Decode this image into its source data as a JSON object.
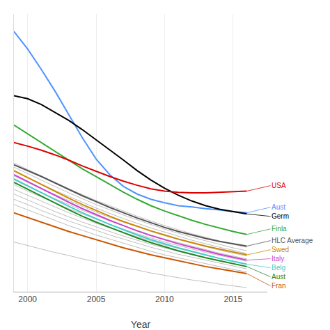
{
  "chart_data": {
    "type": "line",
    "xlabel": "Year",
    "x": [
      1999,
      2000,
      2001,
      2002,
      2003,
      2004,
      2005,
      2006,
      2007,
      2008,
      2009,
      2010,
      2011,
      2012,
      2013,
      2014,
      2015,
      2016
    ],
    "xlim": [
      1999,
      2017.5
    ],
    "xticks": [
      2000,
      2005,
      2010,
      2015
    ],
    "ylim": [
      55,
      530
    ],
    "grid": "x",
    "tick_labels": "x",
    "series": [
      {
        "color": "#aaaaaa",
        "values": [
          275,
          264,
          253,
          242,
          231,
          221,
          211,
          202,
          193,
          184,
          176,
          168,
          161,
          154,
          148,
          142,
          136,
          131
        ]
      },
      {
        "color": "#aaaaaa",
        "values": [
          268,
          257,
          246,
          235,
          224,
          214,
          204,
          195,
          186,
          178,
          170,
          162,
          155,
          148,
          142,
          136,
          130,
          125
        ]
      },
      {
        "color": "#aaaaaa",
        "values": [
          261,
          250,
          239,
          228,
          218,
          208,
          198,
          189,
          180,
          172,
          164,
          157,
          150,
          143,
          137,
          131,
          126,
          120
        ]
      },
      {
        "color": "#aaaaaa",
        "values": [
          253,
          242,
          231,
          221,
          211,
          201,
          191,
          182,
          174,
          166,
          158,
          151,
          144,
          138,
          132,
          126,
          121,
          116
        ]
      },
      {
        "color": "#aaaaaa",
        "values": [
          246,
          235,
          224,
          214,
          204,
          194,
          185,
          176,
          168,
          160,
          152,
          145,
          139,
          133,
          127,
          121,
          116,
          111
        ]
      },
      {
        "color": "#aaaaaa",
        "values": [
          238,
          227,
          217,
          207,
          197,
          188,
          179,
          170,
          162,
          154,
          147,
          140,
          134,
          128,
          122,
          117,
          112,
          107
        ]
      },
      {
        "color": "#aaaaaa",
        "values": [
          230,
          220,
          210,
          200,
          190,
          181,
          172,
          164,
          156,
          149,
          142,
          135,
          129,
          123,
          117,
          112,
          107,
          102
        ]
      },
      {
        "color": "#aaaaaa",
        "values": [
          222,
          212,
          202,
          192,
          183,
          174,
          166,
          158,
          150,
          143,
          136,
          130,
          124,
          118,
          113,
          108,
          103,
          98
        ]
      },
      {
        "color": "#aaaaaa",
        "values": [
          213,
          204,
          194,
          185,
          176,
          168,
          160,
          152,
          145,
          138,
          131,
          125,
          119,
          114,
          109,
          104,
          99,
          94
        ]
      },
      {
        "color": "#aaaaaa",
        "values": [
          204,
          195,
          186,
          177,
          168,
          160,
          152,
          145,
          138,
          131,
          124,
          118,
          113,
          108,
          103,
          98,
          93,
          89
        ]
      },
      {
        "color": "#aaaaaa",
        "values": [
          140,
          134,
          128,
          122,
          117,
          111,
          106,
          101,
          96,
          92,
          87,
          83,
          79,
          75,
          72,
          68,
          65,
          62
        ]
      },
      {
        "name": "Aust",
        "color": "#4d94ff",
        "values": [
          500,
          470,
          435,
          398,
          358,
          318,
          282,
          255,
          235,
          222,
          213,
          207,
          202,
          200,
          197,
          195,
          192,
          190
        ]
      },
      {
        "name": "Germ",
        "color": "#000000",
        "values": [
          390,
          385,
          375,
          362,
          348,
          332,
          315,
          298,
          280,
          262,
          246,
          232,
          220,
          210,
          202,
          196,
          192,
          188
        ]
      },
      {
        "name": "Finla",
        "color": "#33aa33",
        "values": [
          340,
          325,
          310,
          295,
          280,
          265,
          252,
          238,
          225,
          213,
          202,
          193,
          185,
          177,
          170,
          164,
          158,
          153
        ]
      },
      {
        "name": "USA",
        "color": "#dd0000",
        "values": [
          310,
          304,
          297,
          289,
          280,
          270,
          261,
          252,
          244,
          237,
          231,
          227,
          225,
          224,
          224,
          225,
          226,
          227
        ]
      },
      {
        "name": "Swed",
        "color": "#cc8800",
        "values": [
          262,
          250,
          238,
          226,
          215,
          204,
          194,
          184,
          175,
          167,
          159,
          152,
          145,
          139,
          133,
          128,
          123,
          118
        ]
      },
      {
        "name": "Italy",
        "color": "#cc44cc",
        "values": [
          255,
          243,
          231,
          219,
          208,
          197,
          187,
          177,
          168,
          159,
          151,
          144,
          137,
          131,
          125,
          119,
          114,
          109
        ]
      },
      {
        "name": "Belg",
        "color": "#44cccc",
        "values": [
          248,
          236,
          224,
          212,
          201,
          190,
          180,
          170,
          161,
          152,
          144,
          137,
          130,
          124,
          118,
          112,
          107,
          102
        ]
      },
      {
        "name": "Aust",
        "color": "#228822",
        "values": [
          242,
          230,
          218,
          206,
          195,
          184,
          174,
          165,
          156,
          147,
          139,
          132,
          125,
          119,
          113,
          108,
          103,
          98
        ]
      },
      {
        "name": "Fran",
        "color": "#cc5500",
        "values": [
          190,
          182,
          174,
          166,
          158,
          151,
          144,
          137,
          130,
          124,
          118,
          113,
          108,
          103,
          98,
          94,
          90,
          86
        ]
      },
      {
        "name": "HLC Average",
        "color": "#555555",
        "values": [
          272,
          262,
          252,
          241,
          230,
          219,
          209,
          199,
          190,
          181,
          173,
          165,
          158,
          152,
          146,
          141,
          137,
          133
        ]
      }
    ]
  }
}
